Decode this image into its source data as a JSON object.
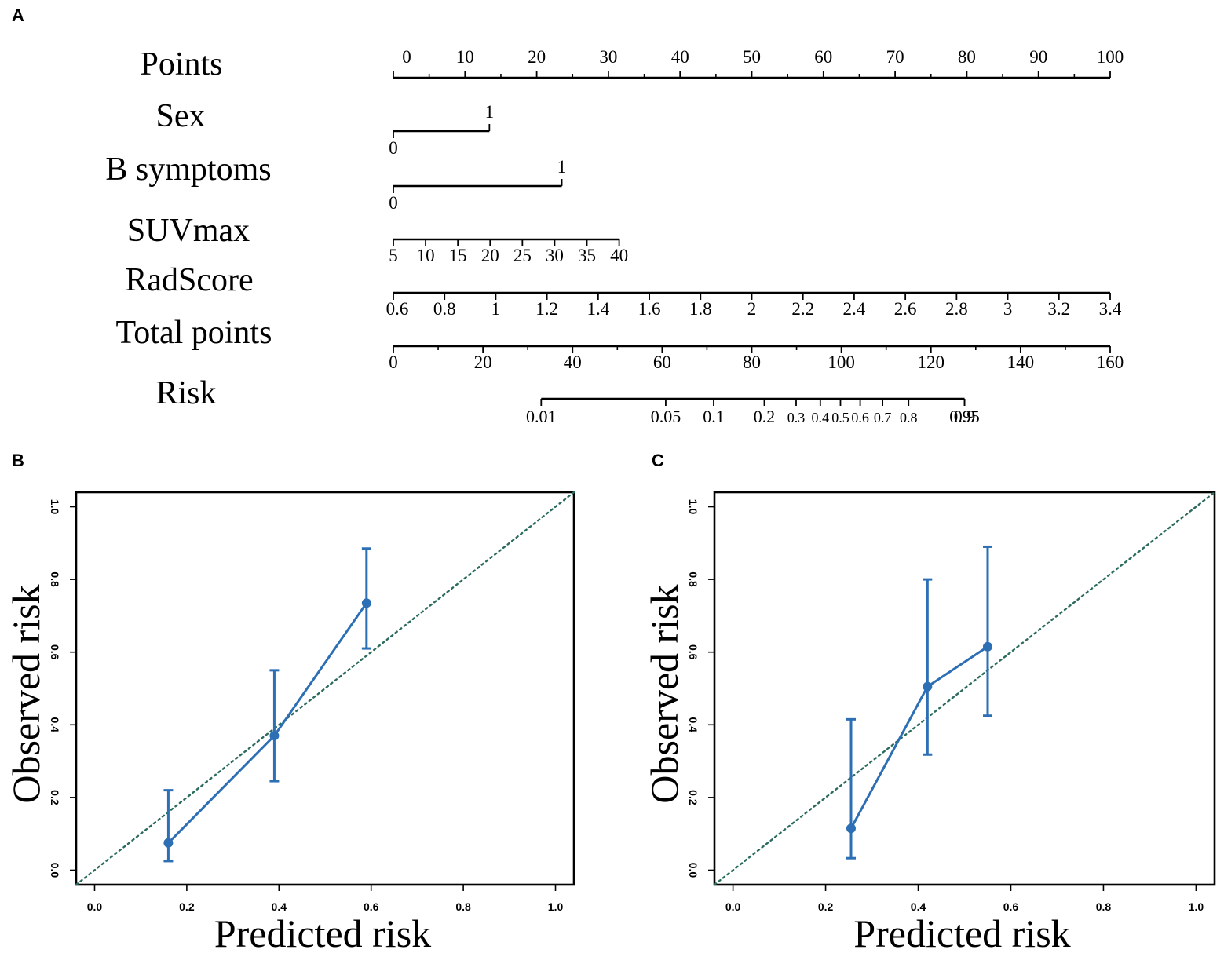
{
  "panels": {
    "a": "A",
    "b": "B",
    "c": "C"
  },
  "colors": {
    "series": "#2c6fb5",
    "diagonal": "#2a6b5e",
    "axis": "#000000"
  },
  "chart_data": [
    {
      "type": "nomogram",
      "panel": "A",
      "rows": [
        {
          "label": "Points",
          "min": 0,
          "max": 100,
          "ticks": [
            0,
            10,
            20,
            30,
            40,
            50,
            60,
            70,
            80,
            90,
            100
          ],
          "tick_labels": [
            "0",
            "10",
            "20",
            "30",
            "40",
            "50",
            "60",
            "70",
            "80",
            "90",
            "100"
          ],
          "minor_step": 5,
          "labels_above": true
        },
        {
          "label": "Sex",
          "points_start": 0,
          "points_end": 13.4,
          "tick_labels": [
            "0",
            "1"
          ],
          "labels_alternate": true
        },
        {
          "label": "B symptoms",
          "points_start": 0,
          "points_end": 23.5,
          "tick_labels": [
            "0",
            "1"
          ],
          "labels_alternate": true
        },
        {
          "label": "SUVmax",
          "min": 5,
          "max": 40,
          "points_start": 0,
          "points_end": 31.5,
          "ticks": [
            5,
            10,
            15,
            20,
            25,
            30,
            35,
            40
          ],
          "tick_labels": [
            "5",
            "10",
            "15",
            "20",
            "25",
            "30",
            "35",
            "40"
          ]
        },
        {
          "label": "RadScore",
          "min": 0.6,
          "max": 3.4,
          "points_start": 0,
          "points_end": 100,
          "ticks": [
            0.6,
            0.8,
            1,
            1.2,
            1.4,
            1.6,
            1.8,
            2,
            2.2,
            2.4,
            2.6,
            2.8,
            3,
            3.2,
            3.4
          ],
          "tick_labels": [
            "0.6",
            "0.8",
            "1",
            "1.2",
            "1.4",
            "1.6",
            "1.8",
            "2",
            "2.2",
            "2.4",
            "2.6",
            "2.8",
            "3",
            "3.2",
            "3.4"
          ]
        },
        {
          "label": "Total points",
          "min": 0,
          "max": 160,
          "ticks": [
            0,
            20,
            40,
            60,
            80,
            100,
            120,
            140,
            160
          ],
          "tick_labels": [
            "0",
            "20",
            "40",
            "60",
            "80",
            "100",
            "120",
            "140",
            "160"
          ],
          "minor_step": 10
        },
        {
          "label": "Risk",
          "ticks": [
            0.01,
            0.05,
            0.1,
            0.2,
            0.3,
            0.4,
            0.5,
            0.6,
            0.7,
            0.8,
            0.9,
            0.95
          ],
          "tick_labels": [
            "0.01",
            "0.05",
            "0.1",
            "0.2",
            "0.3",
            "0.4",
            "0.5",
            "0.6",
            "0.7",
            "0.8",
            "0.9",
            "0.95"
          ],
          "total_points": [
            33.0,
            60.8,
            71.5,
            82.8,
            89.9,
            95.3,
            99.8,
            104.2,
            109.2,
            115.0,
            127.5,
            127.5
          ]
        }
      ]
    },
    {
      "type": "scatter",
      "panel": "B",
      "xlabel": "Predicted risk",
      "ylabel": "Observed risk",
      "xlim": [
        -0.04,
        1.04
      ],
      "ylim": [
        -0.04,
        1.04
      ],
      "xticks": [
        "0.0",
        "0.2",
        "0.4",
        "0.6",
        "0.8",
        "1.0"
      ],
      "yticks": [
        "0.0",
        "0.2",
        "0.4",
        "0.6",
        "0.8",
        "1.0"
      ],
      "reference_line": "ideal diagonal y = x",
      "series": [
        {
          "name": "calibration",
          "x": [
            0.16,
            0.39,
            0.59
          ],
          "y": [
            0.075,
            0.37,
            0.735
          ],
          "lower": [
            0.025,
            0.245,
            0.61
          ],
          "upper": [
            0.22,
            0.55,
            0.885
          ]
        }
      ]
    },
    {
      "type": "scatter",
      "panel": "C",
      "xlabel": "Predicted risk",
      "ylabel": "Observed risk",
      "xlim": [
        -0.04,
        1.04
      ],
      "ylim": [
        -0.04,
        1.04
      ],
      "xticks": [
        "0.0",
        "0.2",
        "0.4",
        "0.6",
        "0.8",
        "1.0"
      ],
      "yticks": [
        "0.0",
        "0.2",
        "0.4",
        "0.6",
        "0.8",
        "1.0"
      ],
      "reference_line": "ideal diagonal y = x",
      "series": [
        {
          "name": "calibration",
          "x": [
            0.255,
            0.42,
            0.55
          ],
          "y": [
            0.115,
            0.505,
            0.615
          ],
          "lower": [
            0.033,
            0.318,
            0.425
          ],
          "upper": [
            0.415,
            0.8,
            0.89
          ]
        }
      ]
    }
  ]
}
